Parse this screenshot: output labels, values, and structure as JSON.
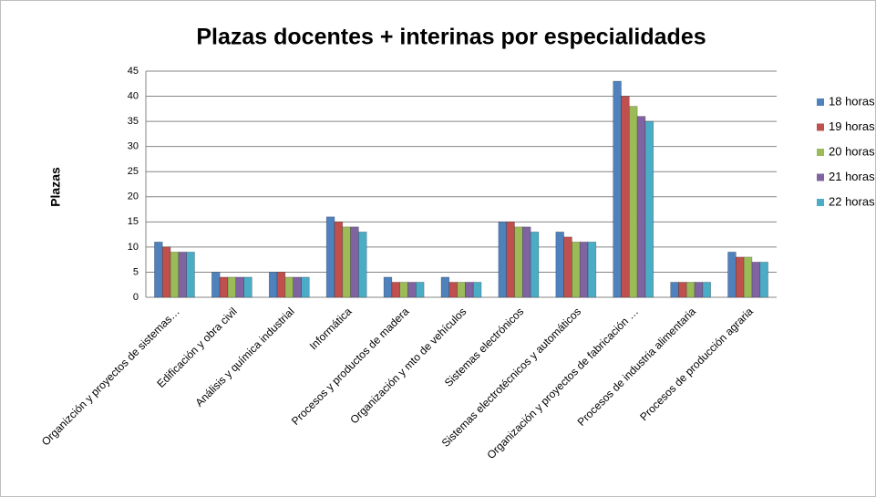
{
  "chart_data": {
    "type": "bar",
    "title": "Plazas docentes + interinas por especialidades",
    "y_label": "Plazas",
    "categories": [
      "Organizción y proyectos de sistemas…",
      "Edificación y obra civil",
      "Análisis y química industrial",
      "Informática",
      "Procesos y productos de madera",
      "Organización y mto de vehículos",
      "Sistemas electrónicos",
      "Sistemas electrotécnicos y automáticos",
      "Organización y proyectos de fabricación …",
      "Procesos de industria alimentaria",
      "Procesos de producción agraria"
    ],
    "series": [
      {
        "name": "18 horas",
        "color": "#4f81bd",
        "values": [
          11,
          5,
          5,
          16,
          4,
          4,
          15,
          13,
          43,
          3,
          9
        ]
      },
      {
        "name": "19 horas",
        "color": "#c0504d",
        "values": [
          10,
          4,
          5,
          15,
          3,
          3,
          15,
          12,
          40,
          3,
          8
        ]
      },
      {
        "name": "20 horas",
        "color": "#9bbb59",
        "values": [
          9,
          4,
          4,
          14,
          3,
          3,
          14,
          11,
          38,
          3,
          8
        ]
      },
      {
        "name": "21 horas",
        "color": "#8064a2",
        "values": [
          9,
          4,
          4,
          14,
          3,
          3,
          14,
          11,
          36,
          3,
          7
        ]
      },
      {
        "name": "22 horas",
        "color": "#4bacc6",
        "values": [
          9,
          4,
          4,
          13,
          3,
          3,
          13,
          11,
          35,
          3,
          7
        ]
      }
    ],
    "ylim": [
      0,
      45
    ],
    "yticks": [
      0,
      5,
      10,
      15,
      20,
      25,
      30,
      35,
      40,
      45
    ],
    "grid": true,
    "legend": "right"
  }
}
